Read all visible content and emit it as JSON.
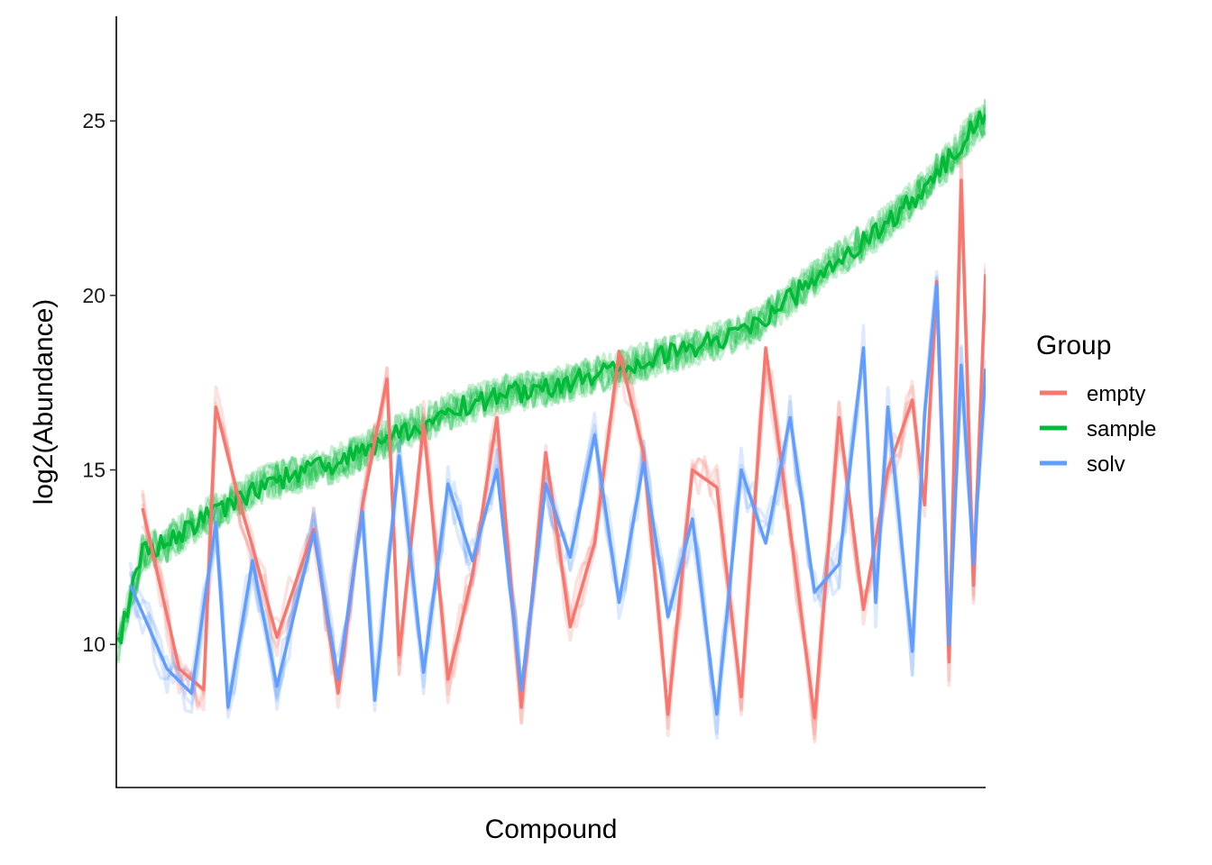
{
  "chart_data": {
    "type": "line",
    "xlabel": "Compound",
    "ylabel": "log2(Abundance)",
    "ylim": [
      5.9,
      28.0
    ],
    "y_ticks": [
      10,
      15,
      20,
      25
    ],
    "y_tick_labels": [
      "10",
      "15",
      "20",
      "25"
    ],
    "x_ticks_shown": false,
    "grid": false,
    "legend": {
      "title": "Group",
      "placement": "right",
      "entries": [
        "empty",
        "sample",
        "solv"
      ]
    },
    "colors": {
      "empty": "#F8766D",
      "sample": "#00BA38",
      "solv": "#619CFF"
    },
    "x_index_range": [
      1,
      72
    ],
    "series": [
      {
        "name": "sample",
        "x": [
          1,
          3,
          5,
          7,
          9,
          11,
          13,
          15,
          17,
          19,
          21,
          23,
          25,
          27,
          29,
          31,
          33,
          35,
          37,
          39,
          41,
          43,
          45,
          47,
          49,
          51,
          53,
          55,
          57,
          59,
          61,
          63,
          65,
          67,
          69,
          71,
          72
        ],
        "values": [
          10.0,
          12.6,
          12.9,
          13.4,
          13.8,
          14.2,
          14.6,
          14.8,
          15.0,
          15.2,
          15.5,
          15.9,
          16.2,
          16.5,
          16.8,
          17.0,
          17.2,
          17.3,
          17.4,
          17.6,
          17.8,
          18.0,
          18.2,
          18.4,
          18.6,
          18.8,
          19.1,
          19.6,
          20.2,
          20.8,
          21.3,
          21.8,
          22.4,
          23.1,
          23.9,
          24.8,
          25.1
        ]
      },
      {
        "name": "empty",
        "x": [
          3,
          6,
          8,
          9,
          11,
          12,
          14,
          17,
          19,
          21,
          23,
          24,
          26,
          28,
          30,
          32,
          34,
          36,
          38,
          40,
          42,
          44,
          46,
          48,
          50,
          52,
          54,
          56,
          58,
          60,
          62,
          64,
          66,
          67,
          68,
          69,
          70,
          71,
          72
        ],
        "values": [
          13.9,
          9.3,
          8.7,
          16.8,
          14.0,
          12.8,
          10.2,
          13.3,
          8.6,
          14.0,
          17.6,
          9.7,
          16.3,
          9.0,
          12.0,
          16.5,
          8.2,
          15.5,
          10.5,
          12.9,
          18.4,
          15.5,
          8.0,
          15.0,
          14.5,
          8.5,
          18.5,
          13.3,
          7.9,
          16.5,
          11.0,
          15.0,
          17.0,
          14.0,
          20.4,
          9.5,
          23.3,
          11.7,
          20.6
        ]
      },
      {
        "name": "solv",
        "x": [
          2,
          5,
          7,
          9,
          10,
          12,
          14,
          17,
          19,
          21,
          22,
          24,
          26,
          28,
          30,
          32,
          34,
          36,
          38,
          40,
          42,
          44,
          46,
          48,
          50,
          52,
          54,
          56,
          58,
          60,
          62,
          63,
          64,
          66,
          67,
          68,
          69,
          70,
          71,
          72
        ],
        "values": [
          11.7,
          9.3,
          8.6,
          13.5,
          8.2,
          12.4,
          8.8,
          13.2,
          9.0,
          13.8,
          8.4,
          15.4,
          9.2,
          14.6,
          12.4,
          15.0,
          8.7,
          14.6,
          12.5,
          16.0,
          11.2,
          15.2,
          10.8,
          13.6,
          8.0,
          15.0,
          12.9,
          16.5,
          11.5,
          12.3,
          18.5,
          11.2,
          16.8,
          9.8,
          16.6,
          20.3,
          10.0,
          18.0,
          12.3,
          17.9
        ]
      }
    ]
  }
}
